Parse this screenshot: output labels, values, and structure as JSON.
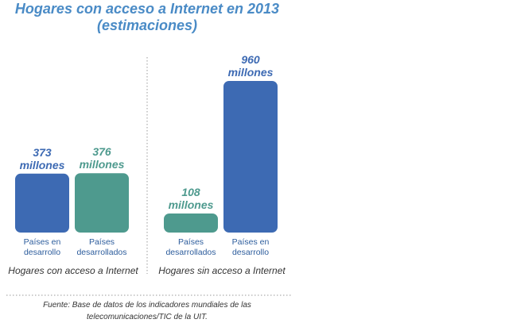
{
  "chart_data": {
    "type": "bar",
    "title": "Hogares con acceso a Internet en 2013",
    "subtitle": "(estimaciones)",
    "unit": "millones",
    "groups": [
      {
        "label": "Hogares con acceso a Internet",
        "bars": [
          {
            "category": [
              "Países en",
              "desarrollo"
            ],
            "value": 373,
            "value_label": "373",
            "color": "#3d6ab3"
          },
          {
            "category": [
              "Países",
              "desarrollados"
            ],
            "value": 376,
            "value_label": "376",
            "color": "#4e9a8e"
          }
        ]
      },
      {
        "label": "Hogares sin acceso a Internet",
        "bars": [
          {
            "category": [
              "Países",
              "desarrollados"
            ],
            "value": 108,
            "value_label": "108",
            "color": "#4e9a8e"
          },
          {
            "category": [
              "Países en",
              "desarrollo"
            ],
            "value": 960,
            "value_label": "960",
            "color": "#3d6ab3"
          }
        ]
      }
    ],
    "source": [
      "Fuente: Base de datos de los indicadores mundiales de las",
      "telecomunicaciones/TIC de la UIT."
    ]
  }
}
